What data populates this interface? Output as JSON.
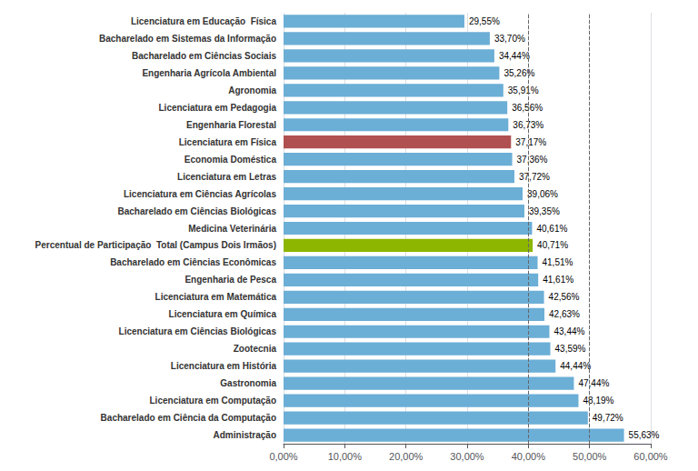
{
  "chart_data": {
    "type": "bar",
    "orientation": "horizontal",
    "categories": [
      "Administração",
      "Bacharelado em Ciência da Computação",
      "Licenciatura em Computação",
      "Gastronomia",
      "Licenciatura em História",
      "Zootecnia",
      "Licenciatura em Ciências Biológicas",
      "Licenciatura em Química",
      "Licenciatura em Matemática",
      "Engenharia de Pesca",
      "Bacharelado em Ciências Econômicas",
      "Percentual de Participação  Total (Campus Dois Irmãos)",
      "Medicina Veterinária",
      "Bacharelado em Ciências Biológicas",
      "Licenciatura em Ciências Agrícolas",
      "Licenciatura em Letras",
      "Economia Doméstica",
      "Licenciatura em Física",
      "Engenharia Florestal",
      "Licenciatura em Pedagogia",
      "Agronomia",
      "Engenharia Agrícola Ambiental",
      "Bacharelado em Ciências Sociais",
      "Bacharelado em Sistemas da Informação",
      "Licenciatura em Educação  Física"
    ],
    "values": [
      55.63,
      49.72,
      48.19,
      47.44,
      44.44,
      43.59,
      43.44,
      42.63,
      42.56,
      41.61,
      41.51,
      40.71,
      40.61,
      39.35,
      39.06,
      37.72,
      37.36,
      37.17,
      36.73,
      36.56,
      35.91,
      35.26,
      34.44,
      33.7,
      29.55
    ],
    "value_labels": [
      "55,63%",
      "49,72%",
      "48,19%",
      "47,44%",
      "44,44%",
      "43,59%",
      "43,44%",
      "42,63%",
      "42,56%",
      "41,61%",
      "41,51%",
      "40,71%",
      "40,61%",
      "39,35%",
      "39,06%",
      "37,72%",
      "37,36%",
      "37,17%",
      "36,73%",
      "36,56%",
      "35,91%",
      "35,26%",
      "34,44%",
      "33,70%",
      "29,55%"
    ],
    "data_labels": true,
    "colors": [
      "#6baed6",
      "#6baed6",
      "#6baed6",
      "#6baed6",
      "#6baed6",
      "#6baed6",
      "#6baed6",
      "#6baed6",
      "#6baed6",
      "#6baed6",
      "#6baed6",
      "#8db600",
      "#6baed6",
      "#6baed6",
      "#6baed6",
      "#6baed6",
      "#6baed6",
      "#b05050",
      "#6baed6",
      "#6baed6",
      "#6baed6",
      "#6baed6",
      "#6baed6",
      "#6baed6",
      "#6baed6"
    ],
    "xlim": [
      0,
      60
    ],
    "xticks": [
      {
        "value": 0,
        "label": "0,00%"
      },
      {
        "value": 10,
        "label": "10,00%"
      },
      {
        "value": 20,
        "label": "20,00%"
      },
      {
        "value": 30,
        "label": "30,00%"
      },
      {
        "value": 40,
        "label": "40,00%"
      },
      {
        "value": 50,
        "label": "50,00%"
      },
      {
        "value": 60,
        "label": "60,00%"
      }
    ],
    "vlines": [
      40,
      50
    ],
    "grid": true
  }
}
